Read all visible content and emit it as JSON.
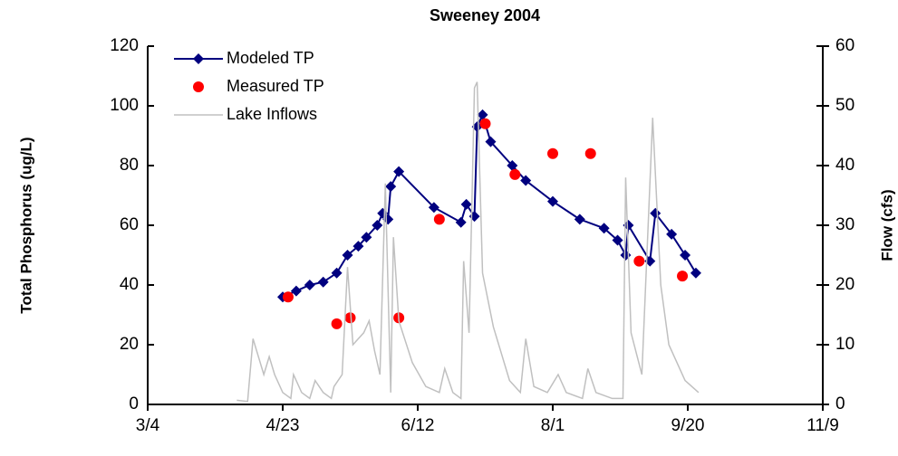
{
  "chart_data": {
    "type": "line",
    "title": "Sweeney 2004",
    "y_label": "Total Phosphorus (ug/L)",
    "y2_label": "Flow (cfs)",
    "xlim": [
      "3/4",
      "11/9"
    ],
    "xticks": [
      "3/4",
      "4/23",
      "6/12",
      "8/1",
      "9/20",
      "11/9"
    ],
    "ylim": [
      0,
      120
    ],
    "yticks": [
      0,
      20,
      40,
      60,
      80,
      100,
      120
    ],
    "y2lim": [
      0,
      60
    ],
    "y2ticks": [
      0,
      10,
      20,
      30,
      40,
      50,
      60
    ],
    "grid": false,
    "legend": "upper left",
    "series": [
      {
        "name": "Modeled TP",
        "color": "#00007f",
        "style": "line+marker",
        "x": [
          "4/23",
          "4/28",
          "5/3",
          "5/8",
          "5/13",
          "5/17",
          "5/21",
          "5/24",
          "5/28",
          "5/30",
          "6/1",
          "6/2",
          "6/5",
          "6/18",
          "6/28",
          "6/30",
          "7/3",
          "7/4",
          "7/6",
          "7/9",
          "7/17",
          "7/22",
          "8/1",
          "8/11",
          "8/20",
          "8/25",
          "8/28",
          "8/29",
          "9/6",
          "9/8",
          "9/14",
          "9/19",
          "9/23"
        ],
        "values": [
          36,
          38,
          40,
          41,
          44,
          50,
          53,
          56,
          60,
          64,
          62,
          73,
          78,
          66,
          61,
          67,
          63,
          93,
          97,
          88,
          80,
          75,
          68,
          62,
          59,
          55,
          50,
          60,
          48,
          64,
          57,
          50,
          44
        ]
      },
      {
        "name": "Measured TP",
        "color": "#ff0000",
        "style": "marker",
        "x": [
          "4/25",
          "5/13",
          "5/18",
          "6/5",
          "6/20",
          "7/7",
          "7/18",
          "8/1",
          "8/15",
          "9/2",
          "9/18"
        ],
        "values": [
          36,
          27,
          29,
          29,
          62,
          94,
          77,
          84,
          84,
          48,
          43
        ]
      },
      {
        "name": "Lake Inflows",
        "color": "#c0c0c0",
        "style": "line",
        "axis": "y2",
        "x": [
          "4/6",
          "4/10",
          "4/12",
          "4/14",
          "4/16",
          "4/18",
          "4/20",
          "4/23",
          "4/26",
          "4/27",
          "4/30",
          "5/3",
          "5/5",
          "5/8",
          "5/11",
          "5/12",
          "5/15",
          "5/17",
          "5/19",
          "5/21",
          "5/23",
          "5/25",
          "5/27",
          "5/29",
          "5/31",
          "6/2",
          "6/3",
          "6/5",
          "6/10",
          "6/15",
          "6/20",
          "6/22",
          "6/25",
          "6/28",
          "6/29",
          "7/1",
          "7/3",
          "7/4",
          "7/6",
          "7/10",
          "7/16",
          "7/20",
          "7/22",
          "7/25",
          "7/30",
          "8/3",
          "8/6",
          "8/12",
          "8/14",
          "8/17",
          "8/23",
          "8/27",
          "8/28",
          "8/30",
          "9/3",
          "9/7",
          "9/10",
          "9/13",
          "9/15",
          "9/19",
          "9/24"
        ],
        "values": [
          0.7,
          0.5,
          11,
          8,
          5,
          8,
          5,
          2,
          1,
          5,
          2,
          1,
          4,
          2,
          1,
          3,
          5,
          23,
          10,
          11,
          12,
          14,
          9,
          5,
          37,
          2,
          28,
          14,
          7,
          3,
          2,
          6,
          2,
          1,
          24,
          12,
          53,
          54,
          22,
          13,
          4,
          2,
          11,
          3,
          2,
          5,
          2,
          1,
          6,
          2,
          1,
          1,
          38,
          12,
          5,
          48,
          20,
          10,
          8,
          4,
          2
        ]
      }
    ]
  }
}
